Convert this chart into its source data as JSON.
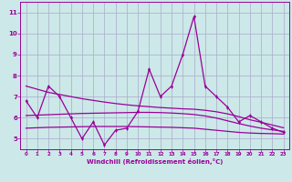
{
  "x": [
    0,
    1,
    2,
    3,
    4,
    5,
    6,
    7,
    8,
    9,
    10,
    11,
    12,
    13,
    14,
    15,
    16,
    17,
    18,
    19,
    20,
    21,
    22,
    23
  ],
  "line1": [
    6.8,
    6.0,
    7.5,
    7.0,
    6.0,
    5.0,
    5.8,
    4.7,
    5.4,
    5.5,
    6.3,
    8.3,
    7.0,
    7.5,
    9.0,
    10.8,
    7.5,
    7.0,
    6.5,
    5.8,
    6.1,
    5.8,
    5.5,
    5.3
  ],
  "trend_upper": [
    7.5,
    7.35,
    7.2,
    7.1,
    7.0,
    6.9,
    6.82,
    6.74,
    6.67,
    6.61,
    6.56,
    6.52,
    6.48,
    6.45,
    6.42,
    6.4,
    6.35,
    6.28,
    6.18,
    6.05,
    5.9,
    5.78,
    5.65,
    5.52
  ],
  "trend_mid": [
    6.1,
    6.12,
    6.14,
    6.16,
    6.18,
    6.2,
    6.21,
    6.22,
    6.23,
    6.24,
    6.25,
    6.25,
    6.24,
    6.22,
    6.19,
    6.15,
    6.08,
    5.98,
    5.85,
    5.72,
    5.6,
    5.5,
    5.42,
    5.35
  ],
  "trend_low": [
    5.5,
    5.52,
    5.54,
    5.55,
    5.56,
    5.57,
    5.58,
    5.58,
    5.58,
    5.58,
    5.57,
    5.56,
    5.55,
    5.54,
    5.52,
    5.5,
    5.45,
    5.4,
    5.35,
    5.3,
    5.27,
    5.25,
    5.24,
    5.22
  ],
  "ylim": [
    4.5,
    11.5
  ],
  "xlim": [
    -0.5,
    23.5
  ],
  "yticks": [
    5,
    6,
    7,
    8,
    9,
    10,
    11
  ],
  "xticks": [
    0,
    1,
    2,
    3,
    4,
    5,
    6,
    7,
    8,
    9,
    10,
    11,
    12,
    13,
    14,
    15,
    16,
    17,
    18,
    19,
    20,
    21,
    22,
    23
  ],
  "xlabel": "Windchill (Refroidissement éolien,°C)",
  "bg_color": "#cce8e8",
  "line_color": "#990099",
  "grid_color": "#aaaacc"
}
